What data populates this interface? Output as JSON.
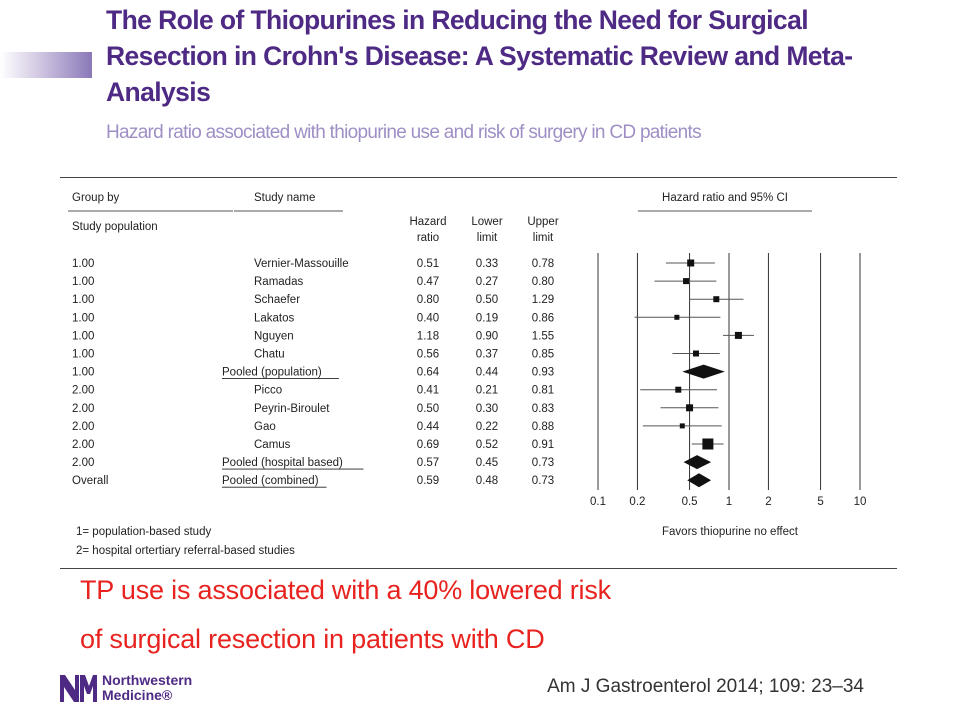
{
  "slide": {
    "title": "The Role of Thiopurines in Reducing the Need for Surgical Resection in Crohn's Disease: A Systematic Review and Meta-Analysis",
    "subtitle": "Hazard ratio associated with thiopurine use and risk of surgery in CD patients",
    "takeaway_line1": "TP use is associated with a 40% lowered risk",
    "takeaway_line2": "of surgical resection in patients with CD",
    "citation": "Am J Gastroenterol 2014; 109: 23–34",
    "logo_line1": "Northwestern",
    "logo_line2": "Medicine®",
    "colors": {
      "title": "#4e2a84",
      "subtitle": "#9f8fc4",
      "takeaway": "#e8231f"
    }
  },
  "chart_data": {
    "type": "forest",
    "x_scale": "log",
    "xlim": [
      0.1,
      10
    ],
    "x_ticks": [
      0.1,
      0.2,
      0.5,
      1,
      2,
      5,
      10
    ],
    "x_tick_labels": [
      "0.1",
      "0.2",
      "0.5",
      "1",
      "2",
      "5",
      "10"
    ],
    "reference_line": 1,
    "header": {
      "group_by": "Group by",
      "study_population": "Study population",
      "study_name": "Study name",
      "hr_line1": "Hazard",
      "hr_line2": "ratio",
      "lower_line1": "Lower",
      "lower_line2": "limit",
      "upper_line1": "Upper",
      "upper_line2": "limit",
      "plot_title": "Hazard ratio and 95% CI"
    },
    "x_caption": "Favors thiopurine no effect",
    "footnote1": "1= population-based study",
    "footnote2": "2= hospital ortertiary referral-based studies",
    "rows": [
      {
        "group": "1.00",
        "study": "Vernier-Massouille",
        "hr": 0.51,
        "lower": 0.33,
        "upper": 0.78,
        "hr_label": "0.51",
        "lower_label": "0.33",
        "upper_label": "0.78",
        "pooled": false,
        "size": 7
      },
      {
        "group": "1.00",
        "study": "Ramadas",
        "hr": 0.47,
        "lower": 0.27,
        "upper": 0.8,
        "hr_label": "0.47",
        "lower_label": "0.27",
        "upper_label": "0.80",
        "pooled": false,
        "size": 6
      },
      {
        "group": "1.00",
        "study": "Schaefer",
        "hr": 0.8,
        "lower": 0.5,
        "upper": 1.29,
        "hr_label": "0.80",
        "lower_label": "0.50",
        "upper_label": "1.29",
        "pooled": false,
        "size": 6
      },
      {
        "group": "1.00",
        "study": "Lakatos",
        "hr": 0.4,
        "lower": 0.19,
        "upper": 0.86,
        "hr_label": "0.40",
        "lower_label": "0.19",
        "upper_label": "0.86",
        "pooled": false,
        "size": 5
      },
      {
        "group": "1.00",
        "study": "Nguyen",
        "hr": 1.18,
        "lower": 0.9,
        "upper": 1.55,
        "hr_label": "1.18",
        "lower_label": "0.90",
        "upper_label": "1.55",
        "pooled": false,
        "size": 7
      },
      {
        "group": "1.00",
        "study": "Chatu",
        "hr": 0.56,
        "lower": 0.37,
        "upper": 0.85,
        "hr_label": "0.56",
        "lower_label": "0.37",
        "upper_label": "0.85",
        "pooled": false,
        "size": 6
      },
      {
        "group": "1.00",
        "study": "Pooled (population)",
        "hr": 0.64,
        "lower": 0.44,
        "upper": 0.93,
        "hr_label": "0.64",
        "lower_label": "0.44",
        "upper_label": "0.93",
        "pooled": true,
        "size": 0
      },
      {
        "group": "2.00",
        "study": "Picco",
        "hr": 0.41,
        "lower": 0.21,
        "upper": 0.81,
        "hr_label": "0.41",
        "lower_label": "0.21",
        "upper_label": "0.81",
        "pooled": false,
        "size": 6
      },
      {
        "group": "2.00",
        "study": "Peyrin-Biroulet",
        "hr": 0.5,
        "lower": 0.3,
        "upper": 0.83,
        "hr_label": "0.50",
        "lower_label": "0.30",
        "upper_label": "0.83",
        "pooled": false,
        "size": 7
      },
      {
        "group": "2.00",
        "study": "Gao",
        "hr": 0.44,
        "lower": 0.22,
        "upper": 0.88,
        "hr_label": "0.44",
        "lower_label": "0.22",
        "upper_label": "0.88",
        "pooled": false,
        "size": 5
      },
      {
        "group": "2.00",
        "study": "Camus",
        "hr": 0.69,
        "lower": 0.52,
        "upper": 0.91,
        "hr_label": "0.69",
        "lower_label": "0.52",
        "upper_label": "0.91",
        "pooled": false,
        "size": 11
      },
      {
        "group": "2.00",
        "study": "Pooled (hospital based)",
        "hr": 0.57,
        "lower": 0.45,
        "upper": 0.73,
        "hr_label": "0.57",
        "lower_label": "0.45",
        "upper_label": "0.73",
        "pooled": true,
        "size": 0
      },
      {
        "group": "Overall",
        "study": "Pooled (combined)",
        "hr": 0.59,
        "lower": 0.48,
        "upper": 0.73,
        "hr_label": "0.59",
        "lower_label": "0.48",
        "upper_label": "0.73",
        "pooled": true,
        "size": 0
      }
    ]
  }
}
